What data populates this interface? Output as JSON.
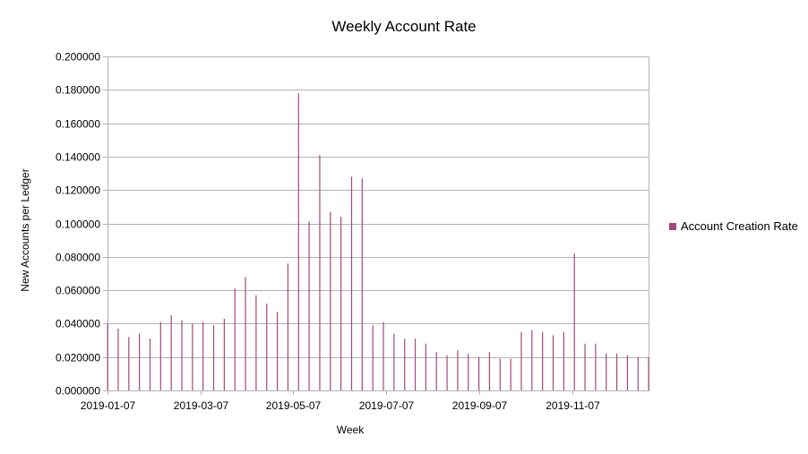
{
  "colors": {
    "series": "#a4487e",
    "grid": "#b3b3b3",
    "axis": "#b3b3b3"
  },
  "chart_data": {
    "type": "bar",
    "title": "Weekly Account Rate",
    "xlabel": "Week",
    "ylabel": "New Accounts per Ledger",
    "ylim": [
      0,
      0.2
    ],
    "ytick_labels": [
      "0.000000",
      "0.020000",
      "0.040000",
      "0.060000",
      "0.080000",
      "0.100000",
      "0.120000",
      "0.140000",
      "0.160000",
      "0.180000",
      "0.200000"
    ],
    "xtick_labels": [
      "2019-01-07",
      "2019-03-07",
      "2019-05-07",
      "2019-07-07",
      "2019-09-07",
      "2019-11-07"
    ],
    "grid": true,
    "legend_position": "right",
    "series": [
      {
        "name": "Account Creation Rate",
        "values": [
          0.04,
          0.037,
          0.032,
          0.034,
          0.031,
          0.041,
          0.045,
          0.042,
          0.04,
          0.041,
          0.039,
          0.043,
          0.061,
          0.068,
          0.057,
          0.052,
          0.047,
          0.076,
          0.178,
          0.101,
          0.141,
          0.107,
          0.104,
          0.128,
          0.127,
          0.039,
          0.041,
          0.034,
          0.031,
          0.031,
          0.028,
          0.023,
          0.021,
          0.024,
          0.022,
          0.02,
          0.023,
          0.019,
          0.019,
          0.035,
          0.036,
          0.035,
          0.033,
          0.035,
          0.082,
          0.028,
          0.028,
          0.022,
          0.022,
          0.021,
          0.02,
          0.02
        ]
      }
    ]
  }
}
